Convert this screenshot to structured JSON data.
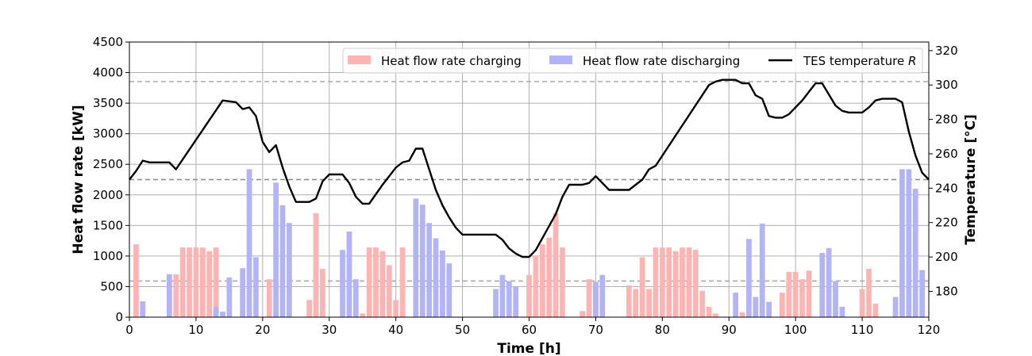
{
  "chart_data": {
    "type": "bar+line",
    "xlabel": "Time [h]",
    "ylabel": "Heat flow rate [kW]",
    "y2label": "Temperature [°C]",
    "xlim": [
      0,
      120
    ],
    "ylim": [
      0,
      4500
    ],
    "y2lim": [
      165,
      325
    ],
    "xticks": [
      0,
      10,
      20,
      30,
      40,
      50,
      60,
      70,
      80,
      90,
      100,
      110,
      120
    ],
    "yticks": [
      0,
      500,
      1000,
      1500,
      2000,
      2500,
      3000,
      3500,
      4000,
      4500
    ],
    "y2ticks": [
      180,
      200,
      220,
      240,
      260,
      280,
      300,
      320
    ],
    "grid": true,
    "legend": {
      "placement": "top-right",
      "entries": [
        {
          "label": "Heat flow rate charging",
          "kind": "bar",
          "color": "#ffb3b3"
        },
        {
          "label": "Heat flow rate discharging",
          "kind": "bar",
          "color": "#b3b3f7"
        },
        {
          "label": "TES temperature ",
          "label_italic": "R",
          "kind": "line",
          "color": "#000000"
        }
      ]
    },
    "reference_lines": [
      {
        "axis": "y2",
        "value": 302,
        "color": "#aaaaaa",
        "style": "dashed"
      },
      {
        "axis": "y2",
        "value": 245,
        "color": "#888888",
        "style": "dashed"
      },
      {
        "axis": "y2",
        "value": 186,
        "color": "#aaaaaa",
        "style": "dashed"
      }
    ],
    "series": [
      {
        "name": "Heat flow rate charging",
        "axis": "y",
        "color": "#ffb3b3",
        "points": [
          [
            1,
            1190
          ],
          [
            7,
            700
          ],
          [
            8,
            1140
          ],
          [
            9,
            1140
          ],
          [
            10,
            1140
          ],
          [
            11,
            1140
          ],
          [
            12,
            1080
          ],
          [
            13,
            1140
          ],
          [
            17,
            110
          ],
          [
            21,
            620
          ],
          [
            27,
            280
          ],
          [
            28,
            1700
          ],
          [
            29,
            790
          ],
          [
            35,
            60
          ],
          [
            36,
            1140
          ],
          [
            37,
            1140
          ],
          [
            38,
            1080
          ],
          [
            39,
            850
          ],
          [
            40,
            280
          ],
          [
            41,
            1140
          ],
          [
            60,
            690
          ],
          [
            61,
            1000
          ],
          [
            62,
            1190
          ],
          [
            63,
            1300
          ],
          [
            64,
            1700
          ],
          [
            65,
            1140
          ],
          [
            68,
            100
          ],
          [
            69,
            620
          ],
          [
            70,
            570
          ],
          [
            75,
            520
          ],
          [
            76,
            460
          ],
          [
            77,
            980
          ],
          [
            78,
            460
          ],
          [
            79,
            1140
          ],
          [
            80,
            1140
          ],
          [
            81,
            1140
          ],
          [
            82,
            1080
          ],
          [
            83,
            1140
          ],
          [
            84,
            1140
          ],
          [
            85,
            1100
          ],
          [
            86,
            430
          ],
          [
            87,
            170
          ],
          [
            88,
            60
          ],
          [
            92,
            80
          ],
          [
            98,
            400
          ],
          [
            99,
            740
          ],
          [
            100,
            740
          ],
          [
            101,
            620
          ],
          [
            102,
            760
          ],
          [
            110,
            460
          ],
          [
            111,
            790
          ],
          [
            112,
            220
          ]
        ]
      },
      {
        "name": "Heat flow rate discharging",
        "axis": "y",
        "color": "#b3b3f7",
        "points": [
          [
            2,
            260
          ],
          [
            6,
            700
          ],
          [
            13,
            170
          ],
          [
            14,
            90
          ],
          [
            15,
            650
          ],
          [
            17,
            800
          ],
          [
            18,
            2420
          ],
          [
            19,
            980
          ],
          [
            22,
            2200
          ],
          [
            23,
            1830
          ],
          [
            24,
            1540
          ],
          [
            32,
            1100
          ],
          [
            33,
            1400
          ],
          [
            34,
            620
          ],
          [
            43,
            1940
          ],
          [
            44,
            1840
          ],
          [
            45,
            1540
          ],
          [
            46,
            1290
          ],
          [
            47,
            1090
          ],
          [
            48,
            880
          ],
          [
            55,
            460
          ],
          [
            56,
            690
          ],
          [
            57,
            590
          ],
          [
            58,
            500
          ],
          [
            70,
            580
          ],
          [
            71,
            690
          ],
          [
            91,
            400
          ],
          [
            93,
            1280
          ],
          [
            94,
            330
          ],
          [
            95,
            1530
          ],
          [
            96,
            250
          ],
          [
            104,
            1050
          ],
          [
            105,
            1130
          ],
          [
            106,
            590
          ],
          [
            107,
            170
          ],
          [
            115,
            330
          ],
          [
            116,
            2420
          ],
          [
            117,
            2420
          ],
          [
            118,
            2100
          ],
          [
            119,
            770
          ]
        ]
      },
      {
        "name": "TES temperature R",
        "axis": "y2",
        "color": "#000000",
        "points": [
          [
            0,
            245
          ],
          [
            1,
            250
          ],
          [
            2,
            256
          ],
          [
            3,
            255
          ],
          [
            5,
            255
          ],
          [
            6,
            255
          ],
          [
            7,
            251
          ],
          [
            14,
            291
          ],
          [
            16,
            290
          ],
          [
            17,
            286
          ],
          [
            18,
            287
          ],
          [
            19,
            282
          ],
          [
            20,
            267
          ],
          [
            21,
            261
          ],
          [
            22,
            265
          ],
          [
            23,
            252
          ],
          [
            24,
            241
          ],
          [
            25,
            232
          ],
          [
            27,
            232
          ],
          [
            28,
            234
          ],
          [
            29,
            244
          ],
          [
            30,
            248
          ],
          [
            32,
            248
          ],
          [
            33,
            243
          ],
          [
            34,
            235
          ],
          [
            35,
            231
          ],
          [
            36,
            231
          ],
          [
            38,
            242
          ],
          [
            40,
            252
          ],
          [
            41,
            255
          ],
          [
            42,
            256
          ],
          [
            43,
            263
          ],
          [
            44,
            263
          ],
          [
            45,
            251
          ],
          [
            46,
            239
          ],
          [
            47,
            230
          ],
          [
            48,
            223
          ],
          [
            49,
            217
          ],
          [
            50,
            213
          ],
          [
            55,
            213
          ],
          [
            56,
            210
          ],
          [
            57,
            205
          ],
          [
            58,
            202
          ],
          [
            59,
            200
          ],
          [
            60,
            200
          ],
          [
            61,
            204
          ],
          [
            64,
            225
          ],
          [
            65,
            235
          ],
          [
            66,
            242
          ],
          [
            68,
            242
          ],
          [
            69,
            243
          ],
          [
            70,
            247
          ],
          [
            71,
            243
          ],
          [
            72,
            239
          ],
          [
            75,
            239
          ],
          [
            76,
            242
          ],
          [
            77,
            245
          ],
          [
            78,
            251
          ],
          [
            79,
            253
          ],
          [
            87,
            300
          ],
          [
            88,
            302
          ],
          [
            89,
            303
          ],
          [
            91,
            303
          ],
          [
            92,
            301
          ],
          [
            93,
            301
          ],
          [
            94,
            294
          ],
          [
            95,
            292
          ],
          [
            96,
            282
          ],
          [
            97,
            281
          ],
          [
            98,
            281
          ],
          [
            99,
            283
          ],
          [
            101,
            291
          ],
          [
            102,
            296
          ],
          [
            103,
            301
          ],
          [
            104,
            301
          ],
          [
            106,
            288
          ],
          [
            107,
            285
          ],
          [
            108,
            284
          ],
          [
            110,
            284
          ],
          [
            111,
            287
          ],
          [
            112,
            291
          ],
          [
            113,
            292
          ],
          [
            115,
            292
          ],
          [
            116,
            290
          ],
          [
            117,
            273
          ],
          [
            118,
            259
          ],
          [
            119,
            249
          ],
          [
            120,
            245
          ]
        ]
      }
    ]
  }
}
